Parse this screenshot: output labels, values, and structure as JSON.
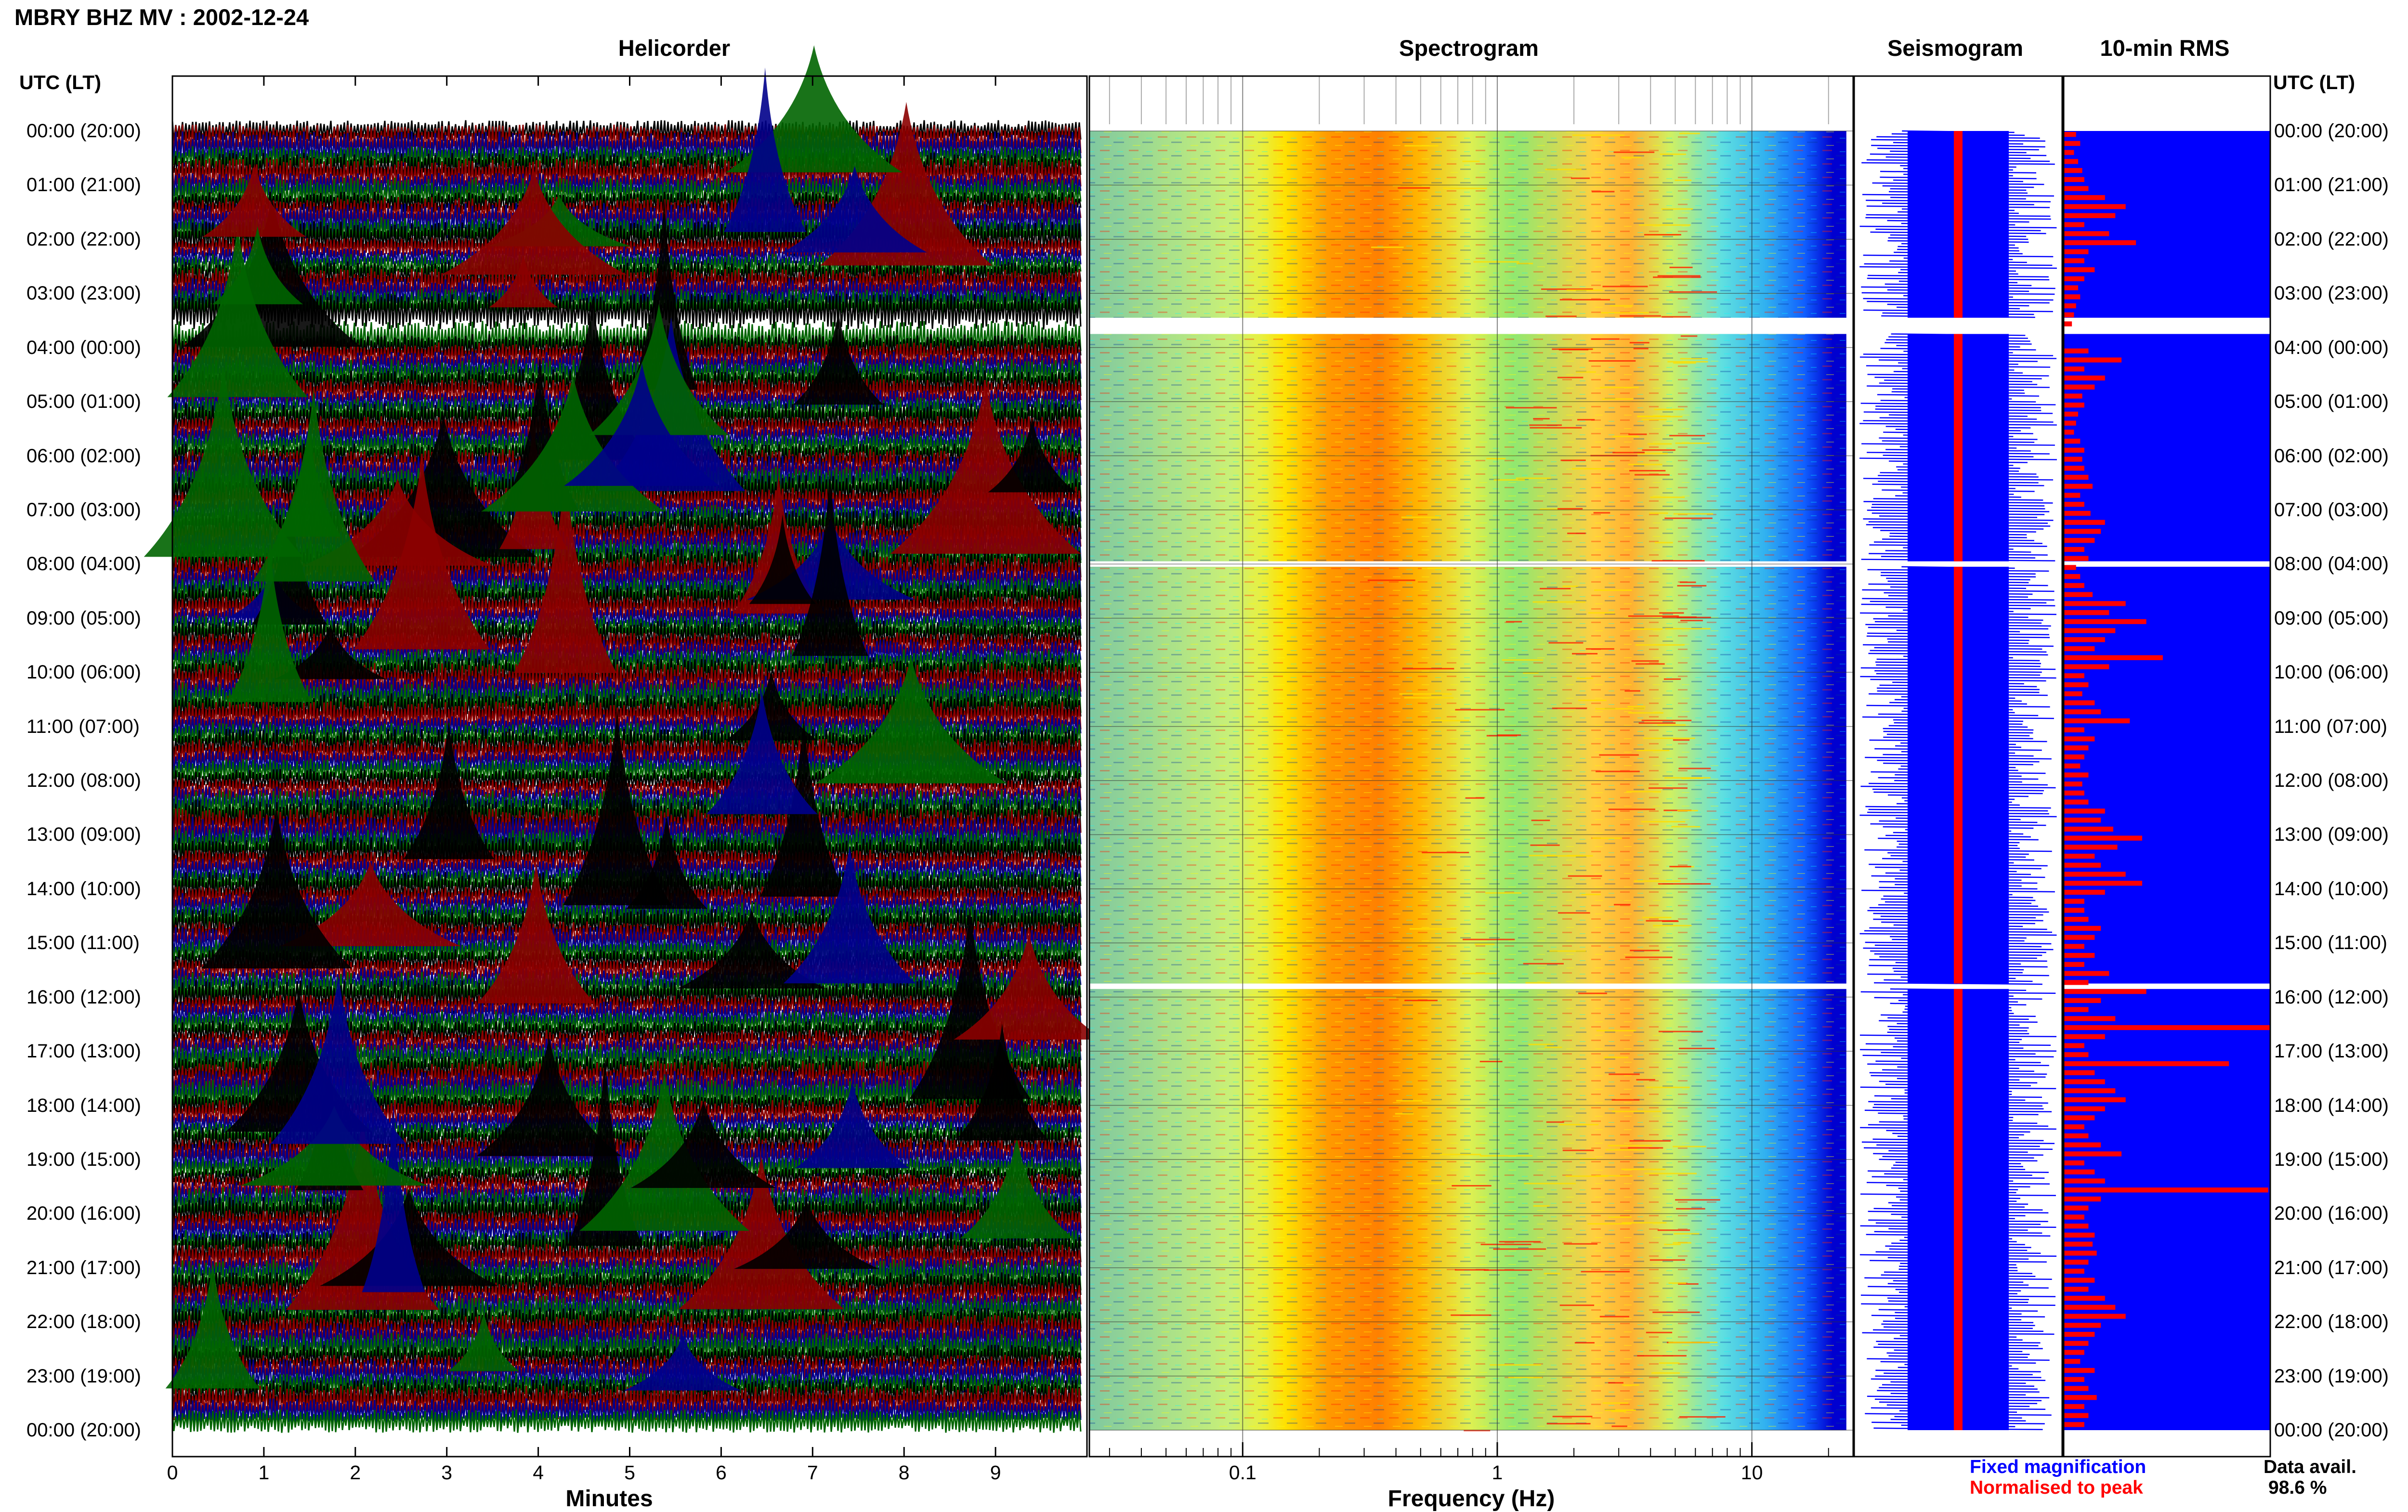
{
  "header": {
    "station": "MBRY BHZ MV : 2002-12-24"
  },
  "panels": {
    "helicorder": "Helicorder",
    "spectrogram": "Spectrogram",
    "seismogram": "Seismogram",
    "rms": "10-min RMS"
  },
  "time_axis": {
    "heading": "UTC (LT)",
    "labels": [
      "00:00 (20:00)",
      "01:00 (21:00)",
      "02:00 (22:00)",
      "03:00 (23:00)",
      "04:00 (00:00)",
      "05:00 (01:00)",
      "06:00 (02:00)",
      "07:00 (03:00)",
      "08:00 (04:00)",
      "09:00 (05:00)",
      "10:00 (06:00)",
      "11:00 (07:00)",
      "12:00 (08:00)",
      "13:00 (09:00)",
      "14:00 (10:00)",
      "15:00 (11:00)",
      "16:00 (12:00)",
      "17:00 (13:00)",
      "18:00 (14:00)",
      "19:00 (15:00)",
      "20:00 (16:00)",
      "21:00 (17:00)",
      "22:00 (18:00)",
      "23:00 (19:00)",
      "00:00 (20:00)"
    ]
  },
  "helicorder_axis": {
    "title": "Minutes",
    "ticks": [
      "0",
      "1",
      "2",
      "3",
      "4",
      "5",
      "6",
      "7",
      "8",
      "9"
    ]
  },
  "frequency_axis": {
    "title": "Frequency (Hz)",
    "ticks": [
      "0.1",
      "1",
      "10"
    ]
  },
  "legend": {
    "fixed": "Fixed magnification",
    "normalised": "Normalised to peak",
    "availability_label": "Data avail.",
    "availability_value": "98.6 %"
  },
  "colors": {
    "helicorder_traces": [
      "#000000",
      "#8b0000",
      "#00008b",
      "#006400"
    ],
    "spectrogram": [
      "#0000c8",
      "#1a8cff",
      "#40e0d0",
      "#adff2f",
      "#ffff00",
      "#ffa500",
      "#ff3300"
    ],
    "seismogram_fixed": "#0000ff",
    "seismogram_normalised": "#ff0000",
    "rms_background": "#0000ff",
    "rms_bar": "#ff0000"
  },
  "chart_data": [
    {
      "type": "heatmap",
      "title": "Helicorder",
      "xlabel": "Minutes",
      "xlim": [
        0,
        10
      ],
      "rows": 144,
      "row_interval_minutes": 10,
      "data_gaps_utc_hours": [
        [
          3.45,
          3.75
        ]
      ]
    },
    {
      "type": "heatmap",
      "title": "Spectrogram",
      "xlabel": "Frequency (Hz)",
      "x_scale": "log",
      "xlim": [
        0.025,
        25
      ],
      "dominant_band_hz": [
        0.2,
        0.5
      ],
      "secondary_band_hz": [
        2.5,
        4.5
      ],
      "data_gaps_utc_hours": [
        [
          3.45,
          3.75
        ],
        [
          7.95,
          8.05
        ],
        [
          15.75,
          15.85
        ]
      ]
    },
    {
      "type": "bar",
      "title": "10-min RMS",
      "orientation": "horizontal",
      "interval_minutes": 10,
      "values": [
        0.06,
        0.08,
        0.05,
        0.07,
        0.09,
        0.1,
        0.12,
        0.2,
        0.3,
        0.25,
        0.1,
        0.22,
        0.35,
        0.12,
        0.1,
        0.15,
        0.1,
        0.07,
        0.08,
        0.06,
        0.05,
        0.04,
        0.0,
        0.0,
        0.12,
        0.28,
        0.1,
        0.2,
        0.15,
        0.09,
        0.1,
        0.07,
        0.06,
        0.05,
        0.08,
        0.1,
        0.09,
        0.1,
        0.12,
        0.14,
        0.08,
        0.1,
        0.13,
        0.2,
        0.18,
        0.15,
        0.1,
        0.12,
        0.06,
        0.08,
        0.1,
        0.14,
        0.3,
        0.22,
        0.4,
        0.25,
        0.2,
        0.15,
        0.48,
        0.22,
        0.1,
        0.12,
        0.09,
        0.15,
        0.18,
        0.32,
        0.1,
        0.15,
        0.12,
        0.1,
        0.08,
        0.12,
        0.09,
        0.1,
        0.12,
        0.2,
        0.18,
        0.24,
        0.38,
        0.26,
        0.15,
        0.18,
        0.3,
        0.38,
        0.2,
        0.1,
        0.1,
        0.12,
        0.18,
        0.15,
        0.1,
        0.15,
        0.1,
        0.22,
        0.12,
        0.4,
        0.18,
        0.12,
        0.25,
        1.0,
        0.2,
        0.1,
        0.12,
        0.8,
        0.15,
        0.2,
        0.25,
        0.3,
        0.2,
        0.15,
        0.1,
        0.12,
        0.18,
        0.28,
        0.1,
        0.15,
        0.2,
        0.99,
        0.18,
        0.12,
        0.1,
        0.12,
        0.15,
        0.14,
        0.16,
        0.12,
        0.1,
        0.15,
        0.12,
        0.2,
        0.25,
        0.3,
        0.18,
        0.15,
        0.12,
        0.1,
        0.08,
        0.15,
        0.1,
        0.12,
        0.16,
        0.1,
        0.12,
        0.1
      ],
      "xlim": [
        0,
        1
      ]
    }
  ]
}
